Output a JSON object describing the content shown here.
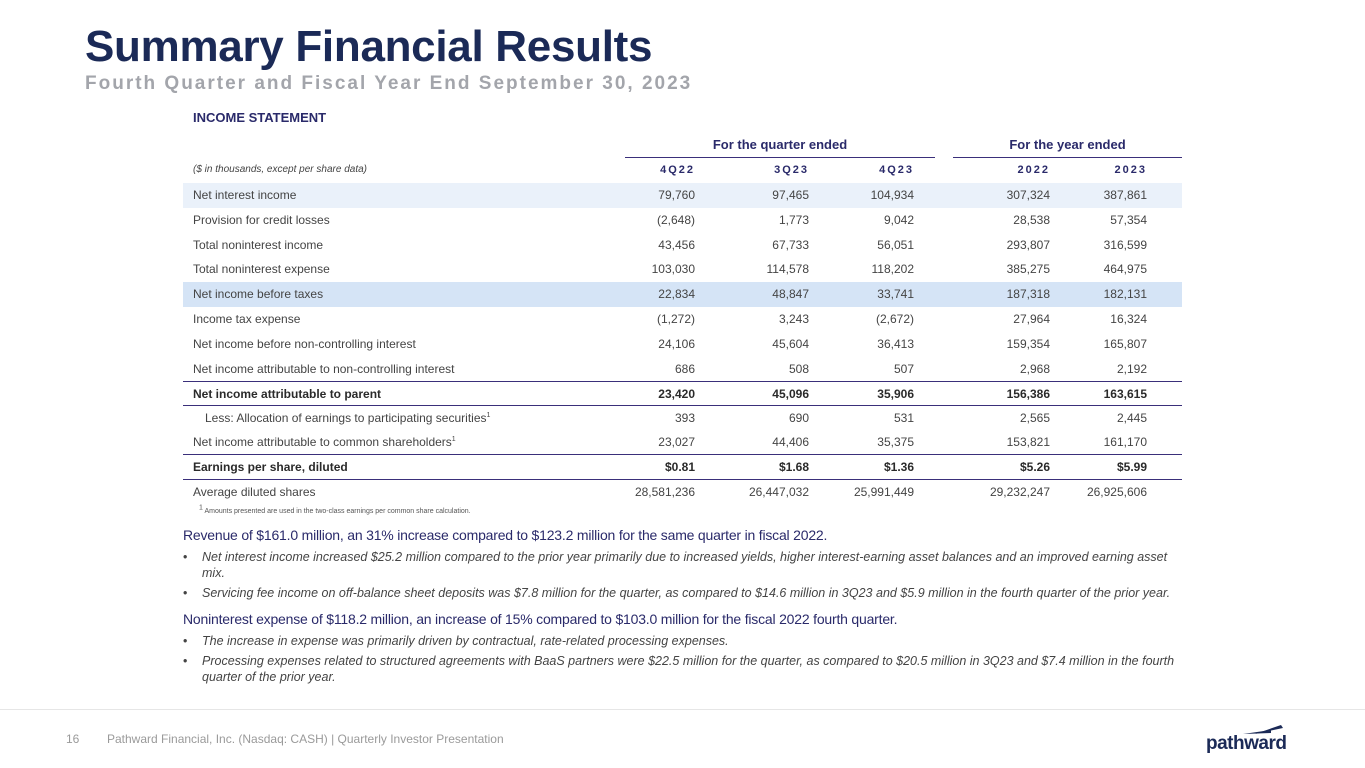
{
  "header": {
    "title": "Summary Financial Results",
    "subtitle": "Fourth Quarter and Fiscal Year End September 30, 2023"
  },
  "section_label": "INCOME STATEMENT",
  "table": {
    "group_quarter": "For the quarter ended",
    "group_year": "For the year ended",
    "units_note": "($ in thousands, except per share data)",
    "columns": [
      "4Q22",
      "3Q23",
      "4Q23",
      "2022",
      "2023"
    ],
    "rows": [
      {
        "label": "Net interest income",
        "values": [
          "79,760",
          "97,465",
          "104,934",
          "307,324",
          "387,861"
        ]
      },
      {
        "label": "Provision for credit losses",
        "values": [
          "(2,648)",
          "1,773",
          "9,042",
          "28,538",
          "57,354"
        ]
      },
      {
        "label": "Total noninterest income",
        "values": [
          "43,456",
          "67,733",
          "56,051",
          "293,807",
          "316,599"
        ]
      },
      {
        "label": "Total noninterest expense",
        "values": [
          "103,030",
          "114,578",
          "118,202",
          "385,275",
          "464,975"
        ]
      },
      {
        "label": "Net income before taxes",
        "values": [
          "22,834",
          "48,847",
          "33,741",
          "187,318",
          "182,131"
        ]
      },
      {
        "label": "Income tax expense",
        "values": [
          "(1,272)",
          "3,243",
          "(2,672)",
          "27,964",
          "16,324"
        ]
      },
      {
        "label": "Net income before non-controlling interest",
        "values": [
          "24,106",
          "45,604",
          "36,413",
          "159,354",
          "165,807"
        ]
      },
      {
        "label": "Net income attributable to non-controlling interest",
        "values": [
          "686",
          "508",
          "507",
          "2,968",
          "2,192"
        ]
      },
      {
        "label": "Net income attributable to parent",
        "values": [
          "23,420",
          "45,096",
          "35,906",
          "156,386",
          "163,615"
        ]
      },
      {
        "label": "Less: Allocation of earnings to participating securities",
        "sup": "1",
        "values": [
          "393",
          "690",
          "531",
          "2,565",
          "2,445"
        ]
      },
      {
        "label": "Net income attributable to common shareholders",
        "sup": "1",
        "values": [
          "23,027",
          "44,406",
          "35,375",
          "153,821",
          "161,170"
        ]
      },
      {
        "label": "Earnings per share, diluted",
        "values": [
          "$0.81",
          "$1.68",
          "$1.36",
          "$5.26",
          "$5.99"
        ]
      },
      {
        "label": "Average diluted shares",
        "values": [
          "28,581,236",
          "26,447,032",
          "25,991,449",
          "29,232,247",
          "26,925,606"
        ]
      }
    ],
    "footnote_mark": "1",
    "footnote": " Amounts presented are used in the two-class earnings per common share calculation."
  },
  "bullets": {
    "section1_head": "Revenue of $161.0 million, an 31% increase compared to $123.2 million for the same quarter in fiscal 2022.",
    "section1_items": [
      "Net interest income increased $25.2 million compared to the prior year primarily due to increased yields, higher interest-earning asset balances and an improved earning asset mix.",
      "Servicing fee income on off-balance sheet deposits was $7.8 million for the quarter, as compared to $14.6 million in 3Q23 and $5.9 million in the fourth quarter of the prior year."
    ],
    "section2_head": "Noninterest expense of $118.2 million, an increase of 15% compared to $103.0 million for the fiscal 2022 fourth quarter.",
    "section2_items": [
      "The increase in expense was primarily driven by contractual, rate-related processing expenses.",
      "Processing expenses related to structured agreements with BaaS partners were $22.5 million for the quarter, as compared to $20.5 million in 3Q23 and $7.4 million in the fourth quarter of the prior year."
    ],
    "bullet_char": "•"
  },
  "footer": {
    "page_number": "16",
    "text": "Pathward Financial, Inc. (Nasdaq: CASH) | Quarterly Investor Presentation",
    "logo_text": "pathward"
  },
  "colors": {
    "title": "#1b2a57",
    "subtitle": "#a3a5ab",
    "accent": "#2a2a6a",
    "row_shade_light": "#eaf1fa",
    "row_shade_mid": "#d5e4f6"
  }
}
